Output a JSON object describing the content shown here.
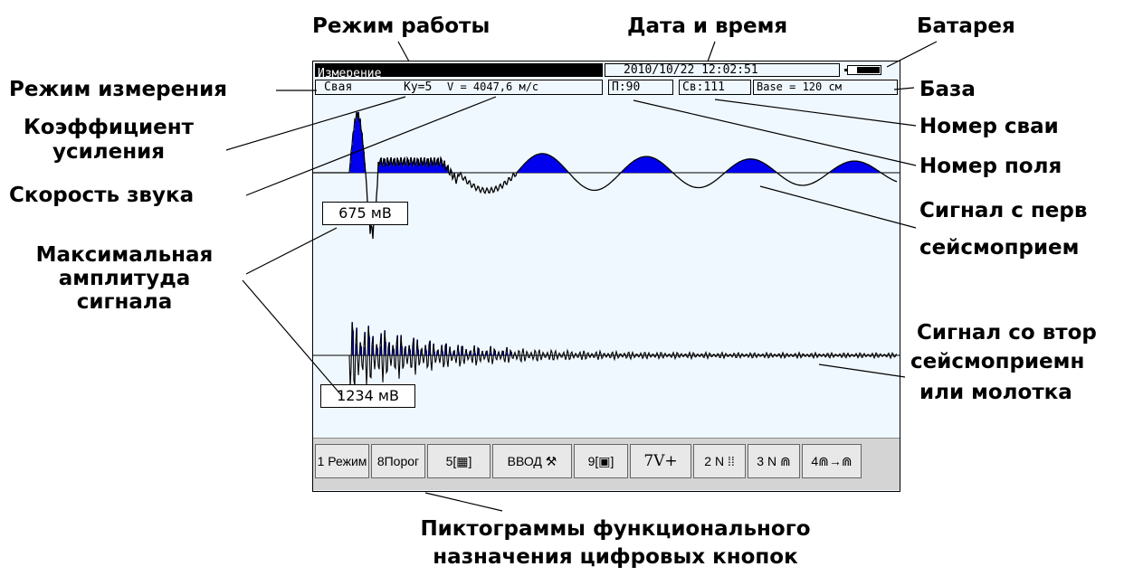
{
  "annotations": {
    "work_mode": "Режим работы",
    "date_time": "Дата и время",
    "battery": "Батарея",
    "measure_mode": "Режим измерения",
    "gain_line1": "Коэффициент",
    "gain_line2": "усиления",
    "sound_speed": "Скорость звука",
    "max_amp_line1": "Максимальная",
    "max_amp_line2": "амплитуда",
    "max_amp_line3": "сигнала",
    "base": "База",
    "pile_number": "Номер сваи",
    "field_number": "Номер поля",
    "signal1_line1": "Сигнал с перв",
    "signal1_line2": "сейсмоприем",
    "signal2_line1": "Сигнал со втор",
    "signal2_line2": "сейсмоприемн",
    "signal2_line3": "или молотка",
    "pictograms_line1": "Пиктограммы функционального",
    "pictograms_line2": "назначения цифровых кнопок"
  },
  "screen": {
    "mode": "Измерение",
    "datetime": "2010/10/22 12:02:51",
    "measure_mode": "Свая",
    "gain": "Ку=5",
    "speed": "V = 4047,6 м/с",
    "field": "П:90",
    "pile": "Св:111",
    "base": "Base =  120 см",
    "amp1": "675 мВ",
    "amp2": "1234 мВ"
  },
  "toolbar": [
    {
      "label": "1 Режим"
    },
    {
      "label": "8Порог"
    },
    {
      "label": "5[▦]"
    },
    {
      "label": "ВВОД ⚒"
    },
    {
      "label": "9[▣]"
    },
    {
      "label": "7V+"
    },
    {
      "label": "2 N ⁞⁞"
    },
    {
      "label": "3 N ⋒"
    },
    {
      "label": "4⋒→⋒"
    }
  ],
  "colors": {
    "fill": "#0000ee",
    "screen_bg": "#f0f8ff",
    "toolbar_bg": "#d4d4d4"
  }
}
